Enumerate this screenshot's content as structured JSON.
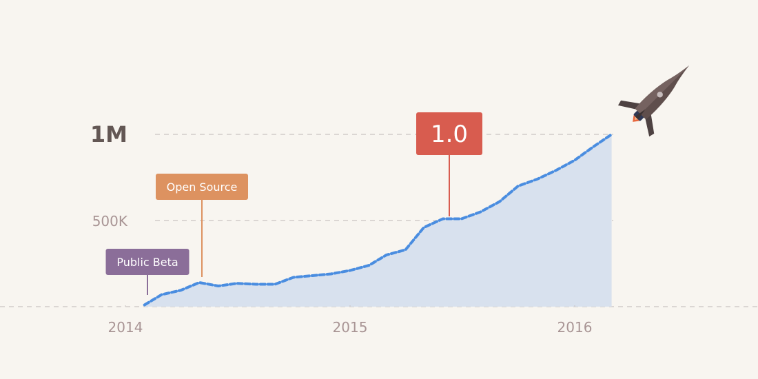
{
  "chart_data": {
    "type": "area",
    "title": "",
    "xlabel": "",
    "ylabel": "",
    "x_ticks": [
      "2014",
      "2015",
      "2016"
    ],
    "y_ticks": [
      "500K",
      "1M"
    ],
    "ylim": [
      0,
      1000000
    ],
    "xlim": [
      "2013-10-01",
      "2016-10-01"
    ],
    "grid": "horizontal dashed at 0, 500K and 1M",
    "colors": {
      "line": "#4a8de0",
      "fill": "#d8e1ee",
      "grid": "#c9c4c1",
      "background": "#f8f5f0"
    },
    "series": [
      {
        "x": [
          "2014-02-01",
          "2014-03-01",
          "2014-04-01",
          "2014-05-01",
          "2014-06-01",
          "2014-07-01",
          "2014-08-01",
          "2014-09-01",
          "2014-10-01",
          "2014-11-01",
          "2014-12-01",
          "2015-01-01",
          "2015-02-01",
          "2015-03-01",
          "2015-04-01",
          "2015-05-01",
          "2015-06-01",
          "2015-07-01",
          "2015-08-01",
          "2015-09-01",
          "2015-10-01",
          "2015-11-01",
          "2015-12-01",
          "2016-01-01",
          "2016-02-01",
          "2016-03-01"
        ],
        "y": [
          10000,
          70000,
          95000,
          140000,
          120000,
          135000,
          130000,
          130000,
          170000,
          180000,
          190000,
          210000,
          240000,
          300000,
          330000,
          460000,
          510000,
          510000,
          550000,
          610000,
          700000,
          740000,
          790000,
          850000,
          930000,
          1000000
        ]
      }
    ],
    "annotations": [
      {
        "label": "Public Beta",
        "x": "2014-02-01",
        "color": "#8b6e99"
      },
      {
        "label": "Open Source",
        "x": "2014-05-01",
        "color": "#dd9260"
      },
      {
        "label": "1.0",
        "x": "2015-06-01",
        "color": "#d85c4f"
      }
    ]
  },
  "decoration": {
    "icon": "rocket-icon"
  }
}
